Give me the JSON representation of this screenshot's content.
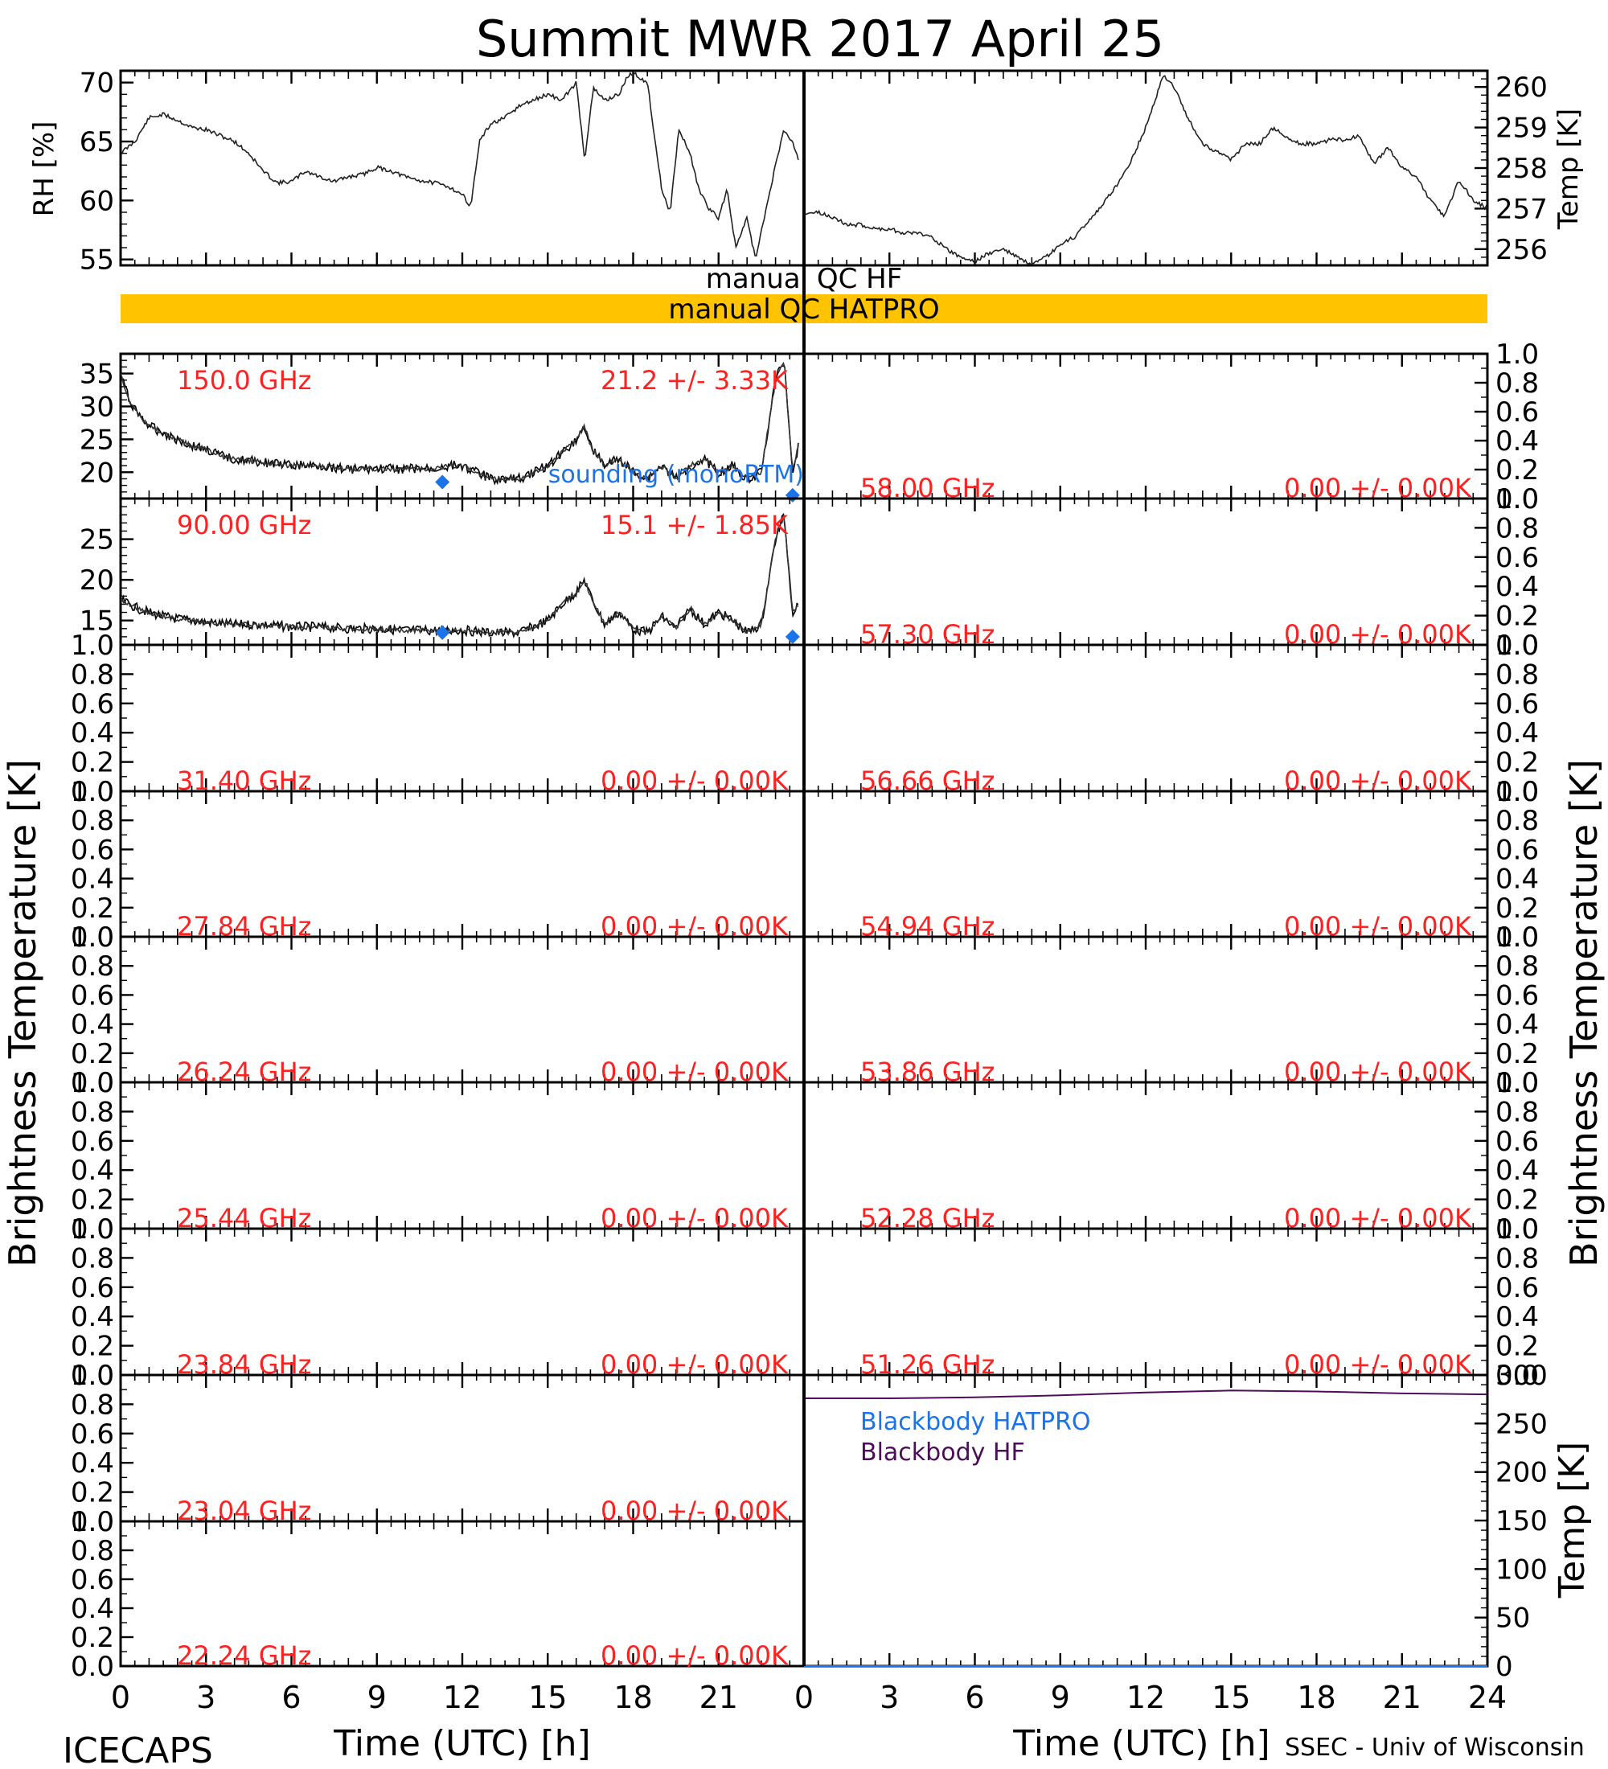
{
  "title": "Summit MWR 2017 April 25",
  "footer": {
    "left": "ICECAPS",
    "right": "SSEC - Univ of Wisconsin"
  },
  "colors": {
    "ink": "#000000",
    "red": "#ff2020",
    "blue": "#1a73e8",
    "purple": "#4b0e57",
    "qc_bar": "#ffc300"
  },
  "xaxis": {
    "label": "Time (UTC) [h]",
    "ticks": [
      "0",
      "3",
      "6",
      "9",
      "12",
      "15",
      "18",
      "21",
      "24"
    ],
    "range": [
      0,
      24
    ]
  },
  "ylabels": {
    "left_main": "Brightness Temperature [K]",
    "right_main": "Brightness Temperature [K]",
    "rh": "RH [%]",
    "temp_top": "Temp [K]",
    "temp_bb": "Temp [K]"
  },
  "qc": {
    "hf_label": "manual QC HF",
    "hatpro_label": "manual QC HATPRO"
  },
  "legend": {
    "sounding": "sounding (monoRTM)",
    "bb_hatpro": "Blackbody HATPRO",
    "bb_hf": "Blackbody HF"
  },
  "chart_data": [
    {
      "type": "line",
      "name": "RH",
      "ylabel": "RH [%]",
      "ylim": [
        54.5,
        71
      ],
      "yticks": [
        "55",
        "60",
        "65",
        "70"
      ],
      "x": [
        0,
        0.5,
        1,
        1.5,
        2,
        2.5,
        3,
        3.5,
        4,
        4.5,
        5,
        5.5,
        6,
        6.5,
        7,
        7.5,
        8,
        8.5,
        9,
        9.5,
        10,
        10.5,
        11,
        11.5,
        12,
        12.3,
        12.6,
        13,
        13.5,
        14,
        14.5,
        15,
        15.5,
        16,
        16.3,
        16.6,
        17,
        17.5,
        17.8,
        18,
        18.5,
        19,
        19.3,
        19.6,
        20,
        20.3,
        20.6,
        21,
        21.3,
        21.6,
        22,
        22.3,
        22.6,
        23,
        23.3,
        23.6,
        23.8
      ],
      "y": [
        64,
        65,
        67,
        67.3,
        66.8,
        66.2,
        66,
        65.5,
        65,
        64,
        62.5,
        61.5,
        61.6,
        62.5,
        62,
        61.6,
        62,
        62.2,
        62.8,
        62.5,
        62,
        61.7,
        61.5,
        61.2,
        60.5,
        59.5,
        65,
        66.5,
        67,
        68,
        68.5,
        69,
        68.5,
        70,
        63.5,
        69.5,
        68.5,
        69,
        70.5,
        70.8,
        70,
        61,
        59,
        66,
        64,
        61,
        59.5,
        58.5,
        61,
        56,
        58.5,
        55,
        58.5,
        63,
        66,
        65,
        63.5
      ]
    },
    {
      "type": "line",
      "name": "Temp",
      "ylabel": "Temp [K]",
      "ylim": [
        255.6,
        260.4
      ],
      "yticks": [
        "256",
        "257",
        "258",
        "259",
        "260"
      ],
      "x": [
        0,
        0.5,
        1,
        1.5,
        2,
        2.5,
        3,
        3.5,
        4,
        4.5,
        5,
        5.5,
        6,
        6.5,
        7,
        7.5,
        8,
        8.5,
        9,
        9.5,
        10,
        10.5,
        11,
        11.5,
        12,
        12.3,
        12.6,
        13,
        13.5,
        14,
        14.5,
        15,
        15.5,
        16,
        16.5,
        17,
        17.5,
        18,
        18.5,
        19,
        19.5,
        20,
        20.5,
        21,
        21.5,
        22,
        22.5,
        23,
        23.5,
        24
      ],
      "y": [
        256.9,
        256.9,
        256.8,
        256.6,
        256.6,
        256.5,
        256.5,
        256.4,
        256.4,
        256.3,
        256.0,
        255.8,
        255.7,
        255.9,
        256.0,
        255.8,
        255.6,
        255.8,
        256.1,
        256.3,
        256.7,
        257.1,
        257.6,
        258.2,
        259.0,
        259.6,
        260.3,
        260.0,
        259.2,
        258.6,
        258.4,
        258.2,
        258.6,
        258.6,
        259.0,
        258.7,
        258.6,
        258.6,
        258.7,
        258.7,
        258.8,
        258.1,
        258.5,
        258.0,
        257.8,
        257.2,
        256.8,
        257.7,
        257.2,
        257.0
      ]
    },
    {
      "type": "line",
      "name": "150.0 GHz",
      "freq_label": "150.0 GHz",
      "stat_label": "21.2 +/- 3.33K",
      "ylim": [
        16,
        38
      ],
      "yticks": [
        "20",
        "25",
        "30",
        "35"
      ],
      "x": [
        0,
        0.3,
        0.6,
        1,
        1.5,
        2,
        2.5,
        3,
        3.5,
        4,
        5,
        6,
        7,
        8,
        9,
        10,
        11,
        11.5,
        12,
        13,
        14,
        15,
        15.5,
        16,
        16.3,
        16.5,
        17,
        17.5,
        18,
        18.5,
        19,
        19.5,
        20,
        20.5,
        21,
        21.5,
        22,
        22.5,
        23,
        23.3,
        23.6,
        23.8
      ],
      "y": [
        35,
        31,
        29,
        27,
        26,
        25,
        24,
        23.5,
        22.5,
        22,
        21.5,
        21,
        21,
        20.5,
        20.5,
        20.5,
        20.5,
        21,
        21,
        19,
        19,
        21,
        23,
        25,
        27,
        24,
        21,
        22,
        20,
        19,
        21,
        19,
        21,
        22,
        20,
        21,
        19,
        20,
        34,
        37,
        20,
        24
      ],
      "sounding": [
        [
          11.3,
          18.5
        ],
        [
          23.6,
          16.5
        ]
      ]
    },
    {
      "type": "line",
      "name": "90.00 GHz",
      "freq_label": "90.00 GHz",
      "stat_label": "15.1 +/- 1.85K",
      "ylim": [
        12,
        30
      ],
      "yticks": [
        "15",
        "20",
        "25"
      ],
      "x": [
        0,
        0.3,
        0.6,
        1,
        1.5,
        2,
        2.5,
        3,
        4,
        5,
        6,
        7,
        8,
        9,
        10,
        11,
        12,
        13,
        14,
        15,
        15.5,
        16,
        16.3,
        16.5,
        17,
        17.5,
        18,
        18.5,
        19,
        19.5,
        20,
        20.5,
        21,
        21.5,
        22,
        22.5,
        23,
        23.3,
        23.6,
        23.8
      ],
      "y": [
        17.5,
        17,
        16.5,
        16,
        15.5,
        15.2,
        15,
        14.8,
        14.5,
        14.5,
        14.2,
        14.2,
        14,
        14,
        13.8,
        13.8,
        13.8,
        13.5,
        13.5,
        15,
        17,
        18.5,
        20,
        18,
        14.5,
        16,
        14,
        13.5,
        15.5,
        14,
        16.5,
        14.5,
        16,
        15,
        13.5,
        14.5,
        25,
        28,
        16,
        17
      ],
      "sounding": [
        [
          11.3,
          13.5
        ],
        [
          23.6,
          13.0
        ]
      ]
    },
    {
      "type": "line",
      "name": "31.40 GHz",
      "freq_label": "31.40 GHz",
      "stat_label": "0.00 +/- 0.00K",
      "ylim": [
        0,
        1
      ]
    },
    {
      "type": "line",
      "name": "27.84 GHz",
      "freq_label": "27.84 GHz",
      "stat_label": "0.00 +/- 0.00K",
      "ylim": [
        0,
        1
      ]
    },
    {
      "type": "line",
      "name": "26.24 GHz",
      "freq_label": "26.24 GHz",
      "stat_label": "0.00 +/- 0.00K",
      "ylim": [
        0,
        1
      ]
    },
    {
      "type": "line",
      "name": "25.44 GHz",
      "freq_label": "25.44 GHz",
      "stat_label": "0.00 +/- 0.00K",
      "ylim": [
        0,
        1
      ]
    },
    {
      "type": "line",
      "name": "23.84 GHz",
      "freq_label": "23.84 GHz",
      "stat_label": "0.00 +/- 0.00K",
      "ylim": [
        0,
        1
      ]
    },
    {
      "type": "line",
      "name": "23.04 GHz",
      "freq_label": "23.04 GHz",
      "stat_label": "0.00 +/- 0.00K",
      "ylim": [
        0,
        1
      ]
    },
    {
      "type": "line",
      "name": "22.24 GHz",
      "freq_label": "22.24 GHz",
      "stat_label": "0.00 +/- 0.00K",
      "ylim": [
        0,
        1
      ]
    },
    {
      "type": "line",
      "name": "58.00 GHz",
      "freq_label": "58.00 GHz",
      "stat_label": "0.00 +/- 0.00K",
      "ylim": [
        0,
        1
      ]
    },
    {
      "type": "line",
      "name": "57.30 GHz",
      "freq_label": "57.30 GHz",
      "stat_label": "0.00 +/- 0.00K",
      "ylim": [
        0,
        1
      ]
    },
    {
      "type": "line",
      "name": "56.66 GHz",
      "freq_label": "56.66 GHz",
      "stat_label": "0.00 +/- 0.00K",
      "ylim": [
        0,
        1
      ]
    },
    {
      "type": "line",
      "name": "54.94 GHz",
      "freq_label": "54.94 GHz",
      "stat_label": "0.00 +/- 0.00K",
      "ylim": [
        0,
        1
      ]
    },
    {
      "type": "line",
      "name": "53.86 GHz",
      "freq_label": "53.86 GHz",
      "stat_label": "0.00 +/- 0.00K",
      "ylim": [
        0,
        1
      ]
    },
    {
      "type": "line",
      "name": "52.28 GHz",
      "freq_label": "52.28 GHz",
      "stat_label": "0.00 +/- 0.00K",
      "ylim": [
        0,
        1
      ]
    },
    {
      "type": "line",
      "name": "51.26 GHz",
      "freq_label": "51.26 GHz",
      "stat_label": "0.00 +/- 0.00K",
      "ylim": [
        0,
        1
      ]
    },
    {
      "type": "line",
      "name": "Blackbody",
      "ylabel": "Temp [K]",
      "ylim": [
        0,
        300
      ],
      "yticks": [
        "0",
        "50",
        "100",
        "150",
        "200",
        "250",
        "300"
      ],
      "x": [
        0,
        3,
        6,
        9,
        12,
        15,
        18,
        21,
        24
      ],
      "series": [
        {
          "name": "Blackbody HF",
          "values": [
            276,
            276,
            277,
            279,
            282,
            284,
            283,
            281,
            280
          ]
        },
        {
          "name": "Blackbody HATPRO",
          "values": [
            0,
            0,
            0,
            0,
            0,
            0,
            0,
            0,
            0
          ]
        }
      ]
    }
  ],
  "zero_axis_ticks": [
    "0.0",
    "0.2",
    "0.4",
    "0.6",
    "0.8",
    "1.0"
  ]
}
